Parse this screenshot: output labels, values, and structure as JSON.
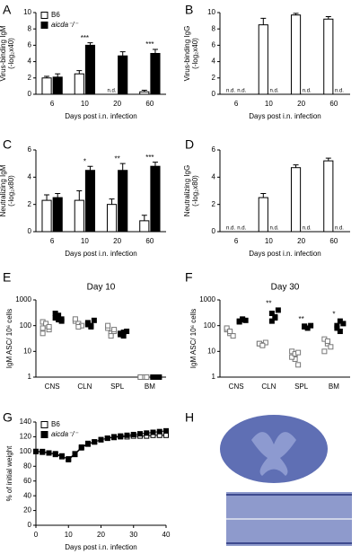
{
  "chart_data": [
    {
      "type": "bar",
      "label": "A",
      "categories": [
        "6",
        "10",
        "20",
        "60"
      ],
      "x_label": "Days post i.n. infection",
      "y_label": [
        "Virus-binding IgM",
        "(-log₂x40)"
      ],
      "ylim": [
        0,
        10
      ],
      "yticks": [
        0,
        2,
        4,
        6,
        8,
        10
      ],
      "legend": "upper left",
      "series": [
        {
          "name": "B6",
          "color": "#ffffff",
          "edgecolor": "#000000",
          "values": [
            2.0,
            2.5,
            null,
            0.3
          ],
          "errors": [
            0.2,
            0.4,
            null,
            0.2
          ],
          "value_labels": [
            null,
            null,
            "n.d.",
            null
          ]
        },
        {
          "name": "aicda⁻/⁻",
          "color": "#000000",
          "edgecolor": "#000000",
          "values": [
            2.1,
            6.0,
            4.7,
            5.0
          ],
          "errors": [
            0.4,
            0.3,
            0.5,
            0.5
          ]
        }
      ],
      "significance": [
        null,
        "***",
        null,
        "***"
      ]
    },
    {
      "type": "bar",
      "label": "B",
      "categories": [
        "6",
        "10",
        "20",
        "60"
      ],
      "x_label": "Days post i.n. infection",
      "y_label": [
        "Virus-binding IgG",
        "(-log₂x40)"
      ],
      "ylim": [
        0,
        10
      ],
      "yticks": [
        0,
        2,
        4,
        6,
        8,
        10
      ],
      "series": [
        {
          "color": "#ffffff",
          "edgecolor": "#000000",
          "values": [
            null,
            8.5,
            9.7,
            9.2
          ],
          "errors": [
            null,
            0.8,
            0.2,
            0.3
          ],
          "value_labels": [
            "n.d.",
            null,
            null,
            null
          ]
        },
        {
          "color": "#000000",
          "edgecolor": "#000000",
          "values": [
            null,
            null,
            null,
            null
          ],
          "value_labels": [
            "n.d.",
            "n.d.",
            "n.d.",
            "n.d."
          ]
        }
      ]
    },
    {
      "type": "bar",
      "label": "C",
      "categories": [
        "6",
        "10",
        "20",
        "60"
      ],
      "x_label": "Days post i.n. infection",
      "y_label": [
        "Neutralizing IgM",
        "(-log₂x80)"
      ],
      "ylim": [
        0,
        6
      ],
      "yticks": [
        0,
        2,
        4,
        6
      ],
      "series": [
        {
          "color": "#ffffff",
          "edgecolor": "#000000",
          "values": [
            2.3,
            2.3,
            2.0,
            0.8
          ],
          "errors": [
            0.4,
            0.7,
            0.4,
            0.4
          ]
        },
        {
          "color": "#000000",
          "edgecolor": "#000000",
          "values": [
            2.5,
            4.5,
            4.5,
            4.8
          ],
          "errors": [
            0.3,
            0.3,
            0.5,
            0.3
          ]
        }
      ],
      "significance": [
        null,
        "*",
        "**",
        "***"
      ]
    },
    {
      "type": "bar",
      "label": "D",
      "categories": [
        "6",
        "10",
        "20",
        "60"
      ],
      "x_label": "Days post i.n. infection",
      "y_label": [
        "Neutralizing IgG",
        "(-log₂x80)"
      ],
      "ylim": [
        0,
        6
      ],
      "yticks": [
        0,
        2,
        4,
        6
      ],
      "series": [
        {
          "color": "#ffffff",
          "edgecolor": "#000000",
          "values": [
            null,
            2.5,
            4.7,
            5.2
          ],
          "errors": [
            null,
            0.3,
            0.2,
            0.2
          ],
          "value_labels": [
            "n.d.",
            null,
            null,
            null
          ]
        },
        {
          "color": "#000000",
          "edgecolor": "#000000",
          "values": [
            null,
            null,
            null,
            null
          ],
          "value_labels": [
            "n.d.",
            "n.d.",
            "n.d.",
            "n.d."
          ]
        }
      ]
    },
    {
      "type": "strip",
      "label": "E",
      "title": "Day 10",
      "categories": [
        "CNS",
        "CLN",
        "SPL",
        "BM"
      ],
      "y_label": [
        "IgM ASC/ 10⁶ cells"
      ],
      "log_scale": true,
      "ylim": [
        1,
        1000
      ],
      "yticks": [
        1,
        10,
        100,
        1000
      ],
      "series": [
        {
          "color": "#ffffff",
          "edgecolor": "#777777",
          "values": [
            [
              140,
              100,
              70,
              50,
              120,
              90,
              80
            ],
            [
              150,
              120,
              100,
              180,
              90
            ],
            [
              80,
              50,
              60,
              100,
              40,
              70
            ],
            [
              1,
              1,
              1,
              1
            ]
          ]
        },
        {
          "color": "#000000",
          "edgecolor": "#000000",
          "values": [
            [
              200,
              250,
              150,
              300,
              170,
              180
            ],
            [
              130,
              100,
              160,
              110,
              90
            ],
            [
              50,
              40,
              60,
              45,
              55
            ],
            [
              1,
              1,
              1,
              1
            ]
          ]
        }
      ]
    },
    {
      "type": "strip",
      "label": "F",
      "title": "Day 30",
      "categories": [
        "CNS",
        "CLN",
        "SPL",
        "BM"
      ],
      "y_label": [
        "IgM ASC/ 10⁶ cells"
      ],
      "log_scale": true,
      "ylim": [
        1,
        1000
      ],
      "yticks": [
        1,
        10,
        100,
        1000
      ],
      "series": [
        {
          "color": "#ffffff",
          "edgecolor": "#777777",
          "values": [
            [
              70,
              50,
              40,
              80,
              60
            ],
            [
              20,
              18,
              22,
              20,
              17
            ],
            [
              10,
              5,
              3,
              6,
              8,
              9
            ],
            [
              30,
              20,
              15,
              10,
              25
            ]
          ]
        },
        {
          "color": "#000000",
          "edgecolor": "#000000",
          "values": [
            [
              150,
              170,
              160,
              140,
              180
            ],
            [
              300,
              200,
              400,
              150,
              220
            ],
            [
              90,
              80,
              100,
              95
            ],
            [
              100,
              60,
              120,
              80,
              150
            ]
          ]
        }
      ],
      "significance": [
        null,
        "**",
        "**",
        "*"
      ]
    },
    {
      "type": "line",
      "label": "G",
      "x_label": "Days post i.n. infection",
      "y_label": [
        "% of initial weight"
      ],
      "x": [
        0,
        2,
        4,
        6,
        8,
        10,
        12,
        14,
        16,
        18,
        20,
        22,
        24,
        26,
        28,
        30,
        32,
        34,
        36,
        38,
        40
      ],
      "xlim": [
        0,
        40
      ],
      "xticks": [
        0,
        10,
        20,
        30,
        40
      ],
      "ylim": [
        0,
        140
      ],
      "yticks": [
        0,
        20,
        40,
        60,
        80,
        100,
        120,
        140
      ],
      "legend": "upper left",
      "series": [
        {
          "name": "B6",
          "color": "#ffffff",
          "edgecolor": "#000000",
          "values": [
            100,
            99,
            98,
            96,
            93,
            90,
            97,
            106,
            111,
            113,
            116,
            118,
            119,
            120,
            120,
            121,
            121,
            121,
            122,
            122,
            122
          ]
        },
        {
          "name": "aicda⁻/⁻",
          "color": "#000000",
          "edgecolor": "#000000",
          "values": [
            100,
            100,
            98,
            97,
            94,
            89,
            96,
            105,
            110,
            113,
            116,
            118,
            120,
            121,
            122,
            123,
            124,
            125,
            126,
            127,
            128
          ]
        }
      ]
    },
    {
      "type": "image",
      "label": "H"
    }
  ]
}
